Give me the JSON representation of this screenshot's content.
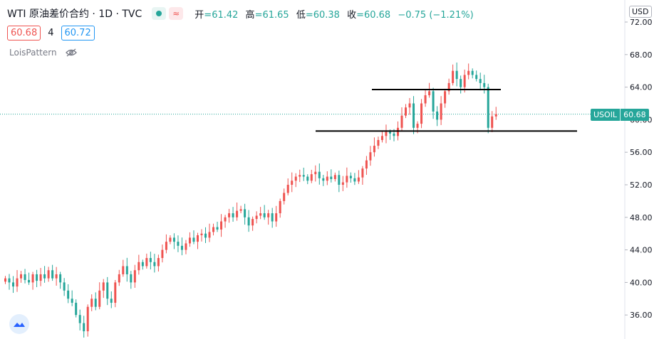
{
  "header": {
    "symbol": "WTI 原油差价合约 · 1D · TVC",
    "open_label": "开",
    "open": "=61.42",
    "high_label": "高",
    "high": "=61.65",
    "low_label": "低",
    "low": "=60.38",
    "close_label": "收",
    "close": "=60.68",
    "change": "−0.75 (−1.21%)",
    "bid": "60.68",
    "spread": "4",
    "ask": "60.72",
    "indicator": "LoisPattern"
  },
  "axis": {
    "currency": "USD",
    "ticker": "USOIL",
    "last_price": "60.68"
  },
  "colors": {
    "up": "#26a69a",
    "down": "#ef5350",
    "last_line": "#26a69a"
  },
  "chart_data": {
    "type": "candlestick",
    "yticks": [
      "72.00",
      "68.00",
      "64.00",
      "60.00",
      "56.00",
      "52.00",
      "48.00",
      "44.00",
      "40.00",
      "36.00"
    ],
    "ylim": [
      33.7,
      74.5
    ],
    "last_price": 60.68,
    "horizontal_lines": [
      63.7,
      58.6
    ],
    "approx_closes": [
      40.5,
      40,
      39.5,
      40.5,
      41,
      40.3,
      40,
      41,
      40.2,
      41,
      40.5,
      41.5,
      40.5,
      41,
      40,
      39,
      38,
      37.5,
      36,
      35,
      34,
      37,
      38,
      37,
      39,
      40,
      38,
      37.5,
      40,
      41,
      42,
      41,
      40,
      41.5,
      42.5,
      42,
      43,
      42.5,
      42,
      43,
      44,
      45,
      45.5,
      45,
      44.5,
      44,
      44.8,
      45.5,
      45,
      45.8,
      46,
      45.5,
      46.2,
      46.8,
      46.5,
      47.5,
      48,
      48.5,
      48,
      48.8,
      49,
      48,
      47,
      47.8,
      48.2,
      48.5,
      48,
      48.5,
      47.5,
      48.5,
      50,
      51,
      52,
      52.5,
      53,
      53.2,
      53,
      52.5,
      53.3,
      53.6,
      52.8,
      52.5,
      53,
      52.7,
      53.2,
      52,
      52.3,
      53.1,
      52.8,
      52.4,
      52.9,
      54,
      55,
      56,
      56.8,
      57.5,
      58,
      58.5,
      58.3,
      58,
      59,
      60.5,
      61.5,
      62,
      59,
      59.5,
      62,
      63,
      63.5,
      61,
      60,
      62,
      63.5,
      64.5,
      66,
      65,
      64,
      65.5,
      66,
      65.5,
      65,
      64.5,
      64,
      59,
      60.4,
      60.68
    ]
  }
}
